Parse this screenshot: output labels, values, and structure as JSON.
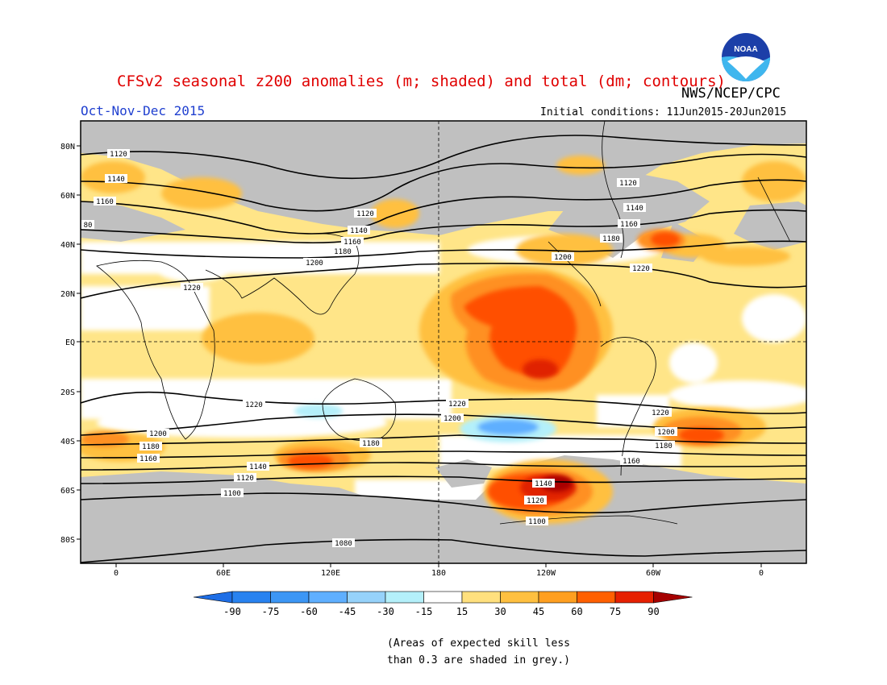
{
  "header": {
    "title": "CFSv2 seasonal z200 anomalies (m; shaded) and total (dm; contours)",
    "org": "NWS/NCEP/CPC",
    "period": "Oct-Nov-Dec 2015",
    "initial_conditions": "Initial conditions: 11Jun2015-20Jun2015",
    "logo_text": "NOAA"
  },
  "map": {
    "lat_labels": [
      "80N",
      "60N",
      "40N",
      "20N",
      "EQ",
      "20S",
      "40S",
      "60S",
      "80S"
    ],
    "lon_labels": [
      "0",
      "60E",
      "120E",
      "180",
      "120W",
      "60W",
      "0"
    ],
    "contour_labels": [
      "1120",
      "1140",
      "1160",
      "1180",
      "1200",
      "1220",
      "1220",
      "1200",
      "1180",
      "1160",
      "1140",
      "1120",
      "1100",
      "1080",
      "1120",
      "1140",
      "1160",
      "1180",
      "1200",
      "1220",
      "1140",
      "1120",
      "1100",
      "1160",
      "1180",
      "1200",
      "1220",
      "1120",
      "1140",
      "1160",
      "1180",
      "1200",
      "1220",
      "80"
    ]
  },
  "colorbar": {
    "ticks": [
      "-90",
      "-75",
      "-60",
      "-45",
      "-30",
      "-15",
      "15",
      "30",
      "45",
      "60",
      "75",
      "90"
    ],
    "colors": [
      "#1e6ee6",
      "#2882f0",
      "#3c96f5",
      "#5fafff",
      "#96d2fa",
      "#b4f0fa",
      "#ffffff",
      "#ffe07e",
      "#ffc040",
      "#ff9f20",
      "#ff6000",
      "#e62000",
      "#a50000"
    ]
  },
  "notes": {
    "line1": "(Areas of expected skill less",
    "line2": "than 0.3 are shaded in grey.)"
  }
}
